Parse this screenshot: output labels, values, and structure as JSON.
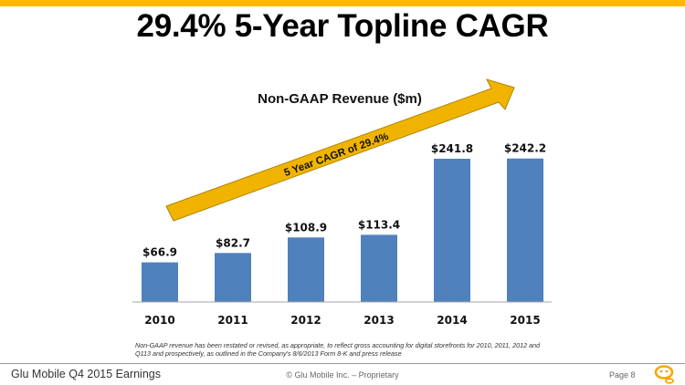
{
  "slide": {
    "title": "29.4% 5-Year Topline CAGR",
    "accent_color": "#FFB800",
    "footnote": "Non-GAAP revenue has been restated or revised, as appropriate, to reflect gross accounting for digital storefronts for 2010, 2011, 2012  and Q113 and prospectively, as outlined in the Company's 8/6/2013 Form 8-K and press release",
    "footer": {
      "left": "Glu Mobile Q4 2015 Earnings",
      "center": "© Glu Mobile Inc. – Proprietary",
      "page": "Page 8",
      "logo_icon": "glu-logo-icon"
    }
  },
  "chart_data": {
    "type": "bar",
    "title": "Non-GAAP Revenue ($m)",
    "categories": [
      "2010",
      "2011",
      "2012",
      "2013",
      "2014",
      "2015"
    ],
    "values": [
      66.9,
      82.7,
      108.9,
      113.4,
      241.8,
      242.2
    ],
    "data_labels": [
      "$66.9",
      "$82.7",
      "$108.9",
      "$113.4",
      "$241.8",
      "$242.2"
    ],
    "bar_color": "#4F81BD",
    "xlabel": "",
    "ylabel": "",
    "ylim": [
      0,
      250
    ],
    "grid": false,
    "legend": "none",
    "annotation": {
      "type": "arrow",
      "text": "5 Year CAGR of 29.4%",
      "color": "#F0B400"
    }
  }
}
